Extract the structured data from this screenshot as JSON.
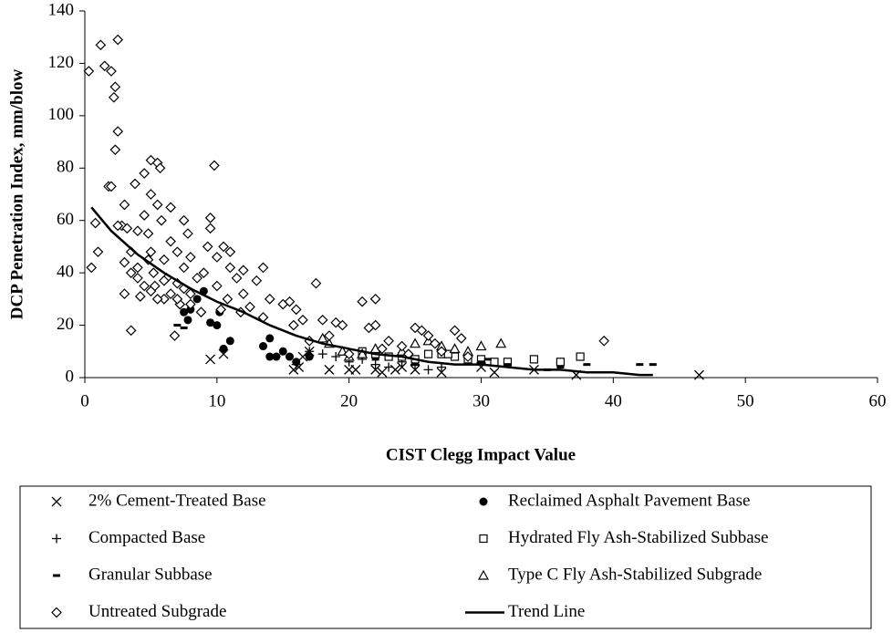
{
  "chart_data": {
    "type": "scatter",
    "xlabel": "CIST Clegg Impact Value",
    "ylabel": "DCP Penetration Index, mm/blow",
    "xlim": [
      0,
      60
    ],
    "xticks": [
      0,
      10,
      20,
      30,
      40,
      50,
      60
    ],
    "ylim": [
      0,
      140
    ],
    "yticks": [
      0,
      20,
      40,
      60,
      80,
      100,
      120,
      140
    ],
    "grid": false,
    "series": [
      {
        "name": "2% Cement-Treated Base",
        "marker": "x",
        "color": "#000000",
        "x": [
          9.5,
          10.5,
          15.8,
          16.2,
          18.5,
          20,
          20.5,
          22,
          22.5,
          23.5,
          24,
          25,
          27,
          30,
          31,
          34,
          37.2,
          46.5,
          16.5,
          17
        ],
        "values": [
          7,
          9,
          3,
          4,
          3,
          3,
          3,
          3,
          2,
          3,
          4,
          3,
          2,
          4,
          2,
          3,
          1,
          1,
          8,
          10
        ]
      },
      {
        "name": "Reclaimed Asphalt Pavement Base",
        "marker": "circle",
        "color": "#000000",
        "x": [
          7.5,
          7.8,
          8,
          8.5,
          9,
          9.5,
          10,
          10.5,
          11,
          10.2,
          13.5,
          14,
          14,
          14.5,
          15,
          15.5,
          16,
          17
        ],
        "values": [
          25,
          22,
          26,
          30,
          33,
          21,
          20,
          11,
          14,
          25,
          12,
          15,
          8,
          8,
          10,
          8,
          6,
          8
        ]
      },
      {
        "name": "Compacted Base",
        "marker": "plus",
        "color": "#000000",
        "x": [
          16,
          17,
          18,
          19,
          20,
          21,
          22,
          23,
          24,
          25,
          26,
          27
        ],
        "values": [
          5,
          10,
          9,
          8,
          6,
          7,
          5,
          4,
          6,
          5,
          3,
          4
        ]
      },
      {
        "name": "Hydrated Fly Ash-Stabilized Subbase",
        "marker": "square",
        "color": "#000000",
        "x": [
          21,
          22,
          23,
          24,
          25,
          26,
          27,
          28,
          29,
          30,
          31,
          32,
          34,
          36,
          37.5,
          27.5
        ],
        "values": [
          10,
          9,
          8,
          8,
          7,
          9,
          9,
          8,
          7,
          7,
          6,
          6,
          7,
          6,
          8,
          9
        ]
      },
      {
        "name": "Granular Subbase",
        "marker": "dash",
        "color": "#000000",
        "x": [
          7,
          7.5,
          30,
          32,
          35,
          36,
          38,
          42,
          43,
          30.5,
          25,
          22
        ],
        "values": [
          20,
          19,
          6,
          5,
          3,
          4,
          5,
          5,
          5,
          7,
          5,
          7
        ]
      },
      {
        "name": "Type C Fly Ash-Stabilized Subgrade",
        "marker": "triangle",
        "color": "#000000",
        "x": [
          18.5,
          19.5,
          20,
          21,
          24,
          25,
          26,
          27,
          28,
          29,
          30,
          31.5,
          18,
          22
        ],
        "values": [
          13,
          10,
          8,
          9,
          10,
          13,
          14,
          12,
          11,
          10,
          12,
          13,
          15,
          11
        ]
      },
      {
        "name": "Untreated Subgrade",
        "marker": "diamond",
        "color": "#000000",
        "x": [
          0.3,
          0.5,
          0.8,
          1,
          1.2,
          1.5,
          1.8,
          2,
          2,
          2.2,
          2.3,
          2.5,
          2.5,
          2.3,
          2.8,
          3,
          3,
          3.2,
          3.5,
          3.5,
          3.8,
          4,
          4,
          4.2,
          4.5,
          4.5,
          4.8,
          5,
          5,
          5,
          5.2,
          5.3,
          5.5,
          5.5,
          5.7,
          5.8,
          6,
          6,
          6.2,
          6.5,
          6.5,
          6.8,
          7,
          7,
          7.2,
          7.5,
          7.5,
          7.8,
          8,
          8,
          8.5,
          8.8,
          9,
          9.3,
          9.5,
          9.5,
          9.8,
          10,
          10,
          10.3,
          10.5,
          10.8,
          11,
          11,
          11.5,
          11.8,
          12,
          12,
          12.5,
          13,
          13.5,
          13.5,
          14,
          15,
          15.5,
          15.8,
          16,
          16.5,
          17,
          17.5,
          18,
          18.5,
          19,
          19.5,
          20,
          21,
          21.5,
          22,
          22,
          22.5,
          23,
          24,
          24.5,
          25,
          25.5,
          26,
          26.5,
          27,
          28,
          28.5,
          29,
          39.3,
          3.5,
          4,
          4.5,
          5,
          5.5,
          6,
          6.5,
          7,
          7.5,
          8,
          3,
          2.5,
          4.8
        ],
        "values": [
          117,
          42,
          59,
          48,
          127,
          119,
          73,
          117,
          73,
          107,
          111,
          129,
          94,
          87,
          58,
          32,
          66,
          57,
          18,
          48,
          74,
          56,
          42,
          31,
          78,
          62,
          55,
          83,
          70,
          48,
          40,
          35,
          82,
          66,
          80,
          60,
          45,
          30,
          38,
          65,
          52,
          16,
          48,
          36,
          28,
          60,
          42,
          55,
          46,
          32,
          38,
          25,
          40,
          50,
          61,
          57,
          81,
          46,
          35,
          26,
          50,
          30,
          42,
          48,
          38,
          25,
          32,
          41,
          27,
          37,
          42,
          23,
          30,
          28,
          29,
          20,
          26,
          22,
          14,
          36,
          22,
          16,
          21,
          20,
          9,
          29,
          19,
          20,
          30,
          11,
          14,
          12,
          9,
          19,
          18,
          16,
          13,
          10,
          18,
          15,
          8,
          14,
          40,
          38,
          35,
          33,
          30,
          37,
          32,
          30,
          34,
          28,
          44,
          58,
          45
        ]
      },
      {
        "name": "Trend Line",
        "marker": "line",
        "color": "#000000",
        "x": [
          0.5,
          2,
          4,
          6,
          8,
          10,
          12,
          14,
          16,
          18,
          20,
          22,
          24,
          26,
          28,
          30,
          32,
          34,
          36,
          38,
          40,
          42,
          43
        ],
        "values": [
          65,
          56,
          47,
          40,
          34,
          29,
          25,
          20,
          16,
          13,
          11,
          9,
          8,
          6,
          5,
          5,
          4,
          3,
          3,
          2,
          2,
          1,
          1
        ]
      }
    ]
  }
}
